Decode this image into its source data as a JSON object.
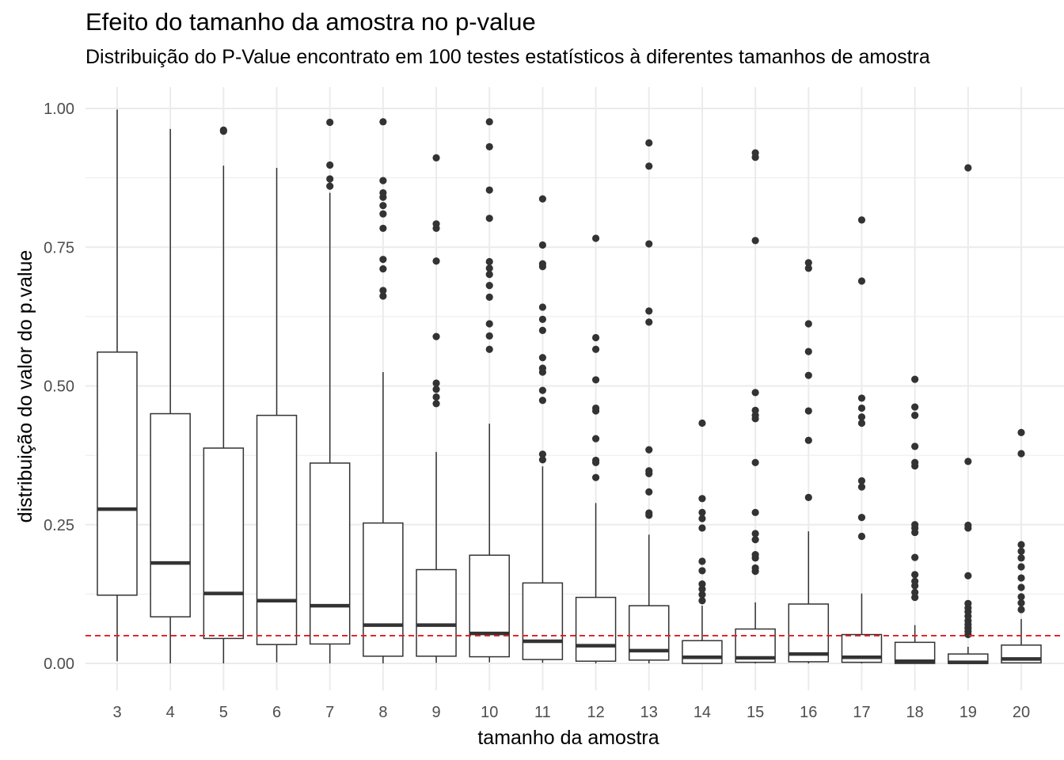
{
  "chart_data": {
    "type": "boxplot",
    "title": "Efeito do tamanho da amostra no p-value",
    "subtitle": "Distribuição do P-Value encontrato em 100 testes estatísticos à diferentes tamanhos de amostra",
    "xlabel": "tamanho da amostra",
    "ylabel": "distribuição do valor do p.value",
    "ylim": [
      -0.05,
      1.04
    ],
    "yticks": [
      0.0,
      0.25,
      0.5,
      0.75,
      1.0
    ],
    "ytick_labels": [
      "0.00",
      "0.25",
      "0.50",
      "0.75",
      "1.00"
    ],
    "grid": true,
    "reference_line": {
      "y": 0.05,
      "color": "#e41a1c",
      "style": "dashed"
    },
    "colors": {
      "box": "#333333",
      "outlier": "#333333",
      "grid": "#ebebeb"
    },
    "categories": [
      "3",
      "4",
      "5",
      "6",
      "7",
      "8",
      "9",
      "10",
      "11",
      "12",
      "13",
      "14",
      "15",
      "16",
      "17",
      "18",
      "19",
      "20"
    ],
    "boxes": [
      {
        "x": "3",
        "whisker_low": 0.004,
        "q1": 0.123,
        "median": 0.278,
        "q3": 0.561,
        "whisker_high": 0.998,
        "outliers": []
      },
      {
        "x": "4",
        "whisker_low": 0.0,
        "q1": 0.084,
        "median": 0.181,
        "q3": 0.45,
        "whisker_high": 0.963,
        "outliers": []
      },
      {
        "x": "5",
        "whisker_low": 0.0,
        "q1": 0.045,
        "median": 0.126,
        "q3": 0.388,
        "whisker_high": 0.897,
        "outliers": [
          0.959,
          0.961
        ]
      },
      {
        "x": "6",
        "whisker_low": 0.002,
        "q1": 0.034,
        "median": 0.113,
        "q3": 0.447,
        "whisker_high": 0.893,
        "outliers": []
      },
      {
        "x": "7",
        "whisker_low": 0.0,
        "q1": 0.035,
        "median": 0.104,
        "q3": 0.361,
        "whisker_high": 0.848,
        "outliers": [
          0.86,
          0.873,
          0.898,
          0.975
        ]
      },
      {
        "x": "8",
        "whisker_low": 0.0,
        "q1": 0.013,
        "median": 0.069,
        "q3": 0.253,
        "whisker_high": 0.525,
        "outliers": [
          0.662,
          0.672,
          0.711,
          0.728,
          0.784,
          0.81,
          0.825,
          0.84,
          0.848,
          0.87,
          0.976
        ]
      },
      {
        "x": "9",
        "whisker_low": 0.001,
        "q1": 0.013,
        "median": 0.069,
        "q3": 0.169,
        "whisker_high": 0.381,
        "outliers": [
          0.468,
          0.48,
          0.494,
          0.505,
          0.589,
          0.725,
          0.784,
          0.792,
          0.911
        ]
      },
      {
        "x": "10",
        "whisker_low": 0.002,
        "q1": 0.012,
        "median": 0.054,
        "q3": 0.195,
        "whisker_high": 0.432,
        "outliers": [
          0.566,
          0.59,
          0.612,
          0.66,
          0.681,
          0.701,
          0.712,
          0.724,
          0.802,
          0.853,
          0.931,
          0.976
        ]
      },
      {
        "x": "11",
        "whisker_low": 0.001,
        "q1": 0.007,
        "median": 0.04,
        "q3": 0.145,
        "whisker_high": 0.355,
        "outliers": [
          0.367,
          0.377,
          0.474,
          0.492,
          0.525,
          0.532,
          0.551,
          0.6,
          0.62,
          0.642,
          0.715,
          0.72,
          0.754,
          0.837
        ]
      },
      {
        "x": "12",
        "whisker_low": 0.0,
        "q1": 0.004,
        "median": 0.032,
        "q3": 0.119,
        "whisker_high": 0.289,
        "outliers": [
          0.335,
          0.362,
          0.366,
          0.405,
          0.455,
          0.46,
          0.511,
          0.566,
          0.587,
          0.766
        ]
      },
      {
        "x": "13",
        "whisker_low": 0.0,
        "q1": 0.006,
        "median": 0.023,
        "q3": 0.104,
        "whisker_high": 0.232,
        "outliers": [
          0.267,
          0.271,
          0.309,
          0.342,
          0.347,
          0.385,
          0.615,
          0.635,
          0.756,
          0.896,
          0.938
        ]
      },
      {
        "x": "14",
        "whisker_low": 0.0,
        "q1": 0.0,
        "median": 0.011,
        "q3": 0.041,
        "whisker_high": 0.104,
        "outliers": [
          0.113,
          0.124,
          0.134,
          0.143,
          0.167,
          0.184,
          0.244,
          0.261,
          0.272,
          0.297,
          0.433
        ]
      },
      {
        "x": "15",
        "whisker_low": 0.0,
        "q1": 0.002,
        "median": 0.01,
        "q3": 0.062,
        "whisker_high": 0.11,
        "outliers": [
          0.166,
          0.172,
          0.19,
          0.196,
          0.223,
          0.234,
          0.272,
          0.362,
          0.441,
          0.447,
          0.456,
          0.488,
          0.762,
          0.912,
          0.92
        ]
      },
      {
        "x": "16",
        "whisker_low": 0.0,
        "q1": 0.003,
        "median": 0.017,
        "q3": 0.107,
        "whisker_high": 0.238,
        "outliers": [
          0.299,
          0.402,
          0.455,
          0.519,
          0.562,
          0.612,
          0.712,
          0.722
        ]
      },
      {
        "x": "17",
        "whisker_low": 0.0,
        "q1": 0.002,
        "median": 0.011,
        "q3": 0.052,
        "whisker_high": 0.126,
        "outliers": [
          0.229,
          0.263,
          0.318,
          0.329,
          0.433,
          0.444,
          0.46,
          0.478,
          0.689,
          0.799
        ]
      },
      {
        "x": "18",
        "whisker_low": 0.0,
        "q1": 0.0,
        "median": 0.004,
        "q3": 0.038,
        "whisker_high": 0.069,
        "outliers": [
          0.119,
          0.128,
          0.14,
          0.148,
          0.16,
          0.191,
          0.236,
          0.244,
          0.25,
          0.356,
          0.362,
          0.391,
          0.447,
          0.462,
          0.512
        ]
      },
      {
        "x": "19",
        "whisker_low": 0.0,
        "q1": 0.0,
        "median": 0.002,
        "q3": 0.017,
        "whisker_high": 0.03,
        "outliers": [
          0.052,
          0.058,
          0.064,
          0.07,
          0.077,
          0.085,
          0.093,
          0.1,
          0.108,
          0.158,
          0.244,
          0.249,
          0.364,
          0.893
        ]
      },
      {
        "x": "20",
        "whisker_low": 0.0,
        "q1": 0.001,
        "median": 0.008,
        "q3": 0.033,
        "whisker_high": 0.08,
        "outliers": [
          0.097,
          0.109,
          0.12,
          0.137,
          0.154,
          0.174,
          0.19,
          0.202,
          0.214,
          0.378,
          0.416
        ]
      }
    ]
  }
}
